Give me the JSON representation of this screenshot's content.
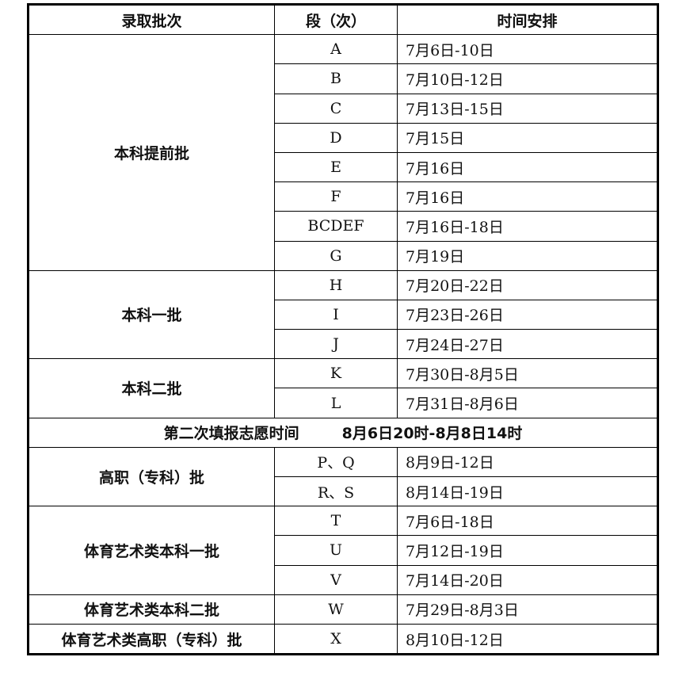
{
  "headers": [
    "录取批次",
    "段（次）",
    "时间安排"
  ],
  "groups": [
    {
      "batch": "本科提前批",
      "rows": [
        {
          "segment": "A",
          "time": "7月6日-10日"
        },
        {
          "segment": "B",
          "time": "7月10日-12日"
        },
        {
          "segment": "C",
          "time": "7月13日-15日"
        },
        {
          "segment": "D",
          "time": "7月15日"
        },
        {
          "segment": "E",
          "time": "7月16日"
        },
        {
          "segment": "F",
          "time": "7月16日"
        },
        {
          "segment": "BCDEF",
          "time": "7月16日-18日"
        },
        {
          "segment": "G",
          "time": "7月19日"
        }
      ]
    },
    {
      "batch": "本科一批",
      "rows": [
        {
          "segment": "H",
          "time": "7月20日-22日"
        },
        {
          "segment": "I",
          "time": "7月23日-26日"
        },
        {
          "segment": "J",
          "time": "7月24日-27日"
        }
      ]
    },
    {
      "batch": "本科二批",
      "rows": [
        {
          "segment": "K",
          "time": "7月30日-8月5日"
        },
        {
          "segment": "L",
          "time": "7月31日-8月6日"
        }
      ]
    },
    {
      "full_label": "第二次填报志愿时间",
      "full_time": "8月6日20时-8月8日14时"
    },
    {
      "batch": "高职（专科）批",
      "rows": [
        {
          "segment": "P、Q",
          "time": "8月9日-12日"
        },
        {
          "segment": "R、S",
          "time": "8月14日-19日"
        }
      ]
    },
    {
      "batch": "体育艺术类本科一批",
      "rows": [
        {
          "segment": "T",
          "time": "7月6日-18日"
        },
        {
          "segment": "U",
          "time": "7月12日-19日"
        },
        {
          "segment": "V",
          "time": "7月14日-20日"
        }
      ]
    },
    {
      "batch": "体育艺术类本科二批",
      "rows": [
        {
          "segment": "W",
          "time": "7月29日-8月3日"
        }
      ]
    },
    {
      "batch": "体育艺术类高职（专科）批",
      "rows": [
        {
          "segment": "X",
          "time": "8月10日-12日"
        }
      ]
    }
  ]
}
